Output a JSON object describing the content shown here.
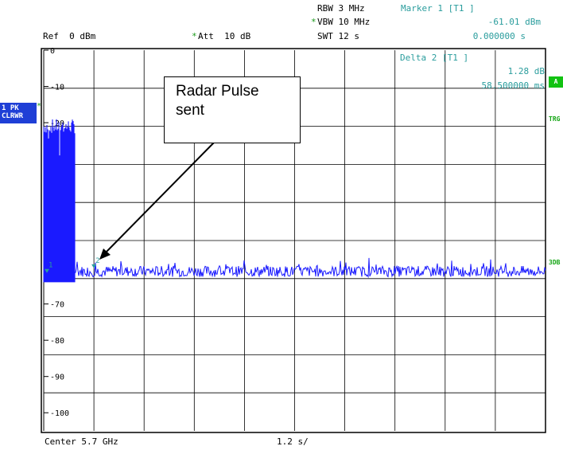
{
  "header": {
    "rbw": "RBW 3 MHz",
    "vbw": "VBW 10 MHz",
    "swt": "SWT 12 s",
    "ref": "Ref  0 dBm",
    "att": "Att  10 dB",
    "star": "*"
  },
  "marker1": {
    "title": "Marker 1 [T1 ]",
    "value": "-61.01 dBm",
    "time": "0.000000 s"
  },
  "delta2": {
    "title": "Delta 2 [T1 ]",
    "value": "1.28 dB",
    "time": "58.500000 ms"
  },
  "left_box": {
    "line1": "1 PK",
    "line2": "CLRWR"
  },
  "right_labels": {
    "a": "A",
    "trg": "TRG",
    "db3": "3DB"
  },
  "footer": {
    "center": "Center 5.7 GHz",
    "span": "1.2 s/"
  },
  "annotation": {
    "text_line1": "Radar Pulse",
    "text_line2": "sent"
  },
  "chart_data": {
    "type": "line",
    "xlabel": "",
    "ylabel": "",
    "y_tick_labels": [
      "0",
      "-10",
      "-20",
      "-70",
      "-80",
      "-90",
      "-100"
    ],
    "y_ticks": [
      0,
      -10,
      -20,
      -70,
      -80,
      -90,
      -100
    ],
    "ylim": [
      -105,
      0
    ],
    "xlim": [
      0,
      12
    ],
    "x_unit": "s",
    "grid": true,
    "series": [
      {
        "color": "#1a1aff",
        "burst": {
          "x_range": [
            0,
            0.75
          ],
          "peak_min": -23,
          "peak_max": -19,
          "floor": -64
        },
        "noise_floor": {
          "x_range": [
            0.75,
            12
          ],
          "mean": -61,
          "jitter": 1.5
        }
      }
    ],
    "markers": [
      {
        "label": "1",
        "x": 0.0,
        "y": -61.01
      },
      {
        "label": "2",
        "x": 0.0585,
        "y": -59.73
      }
    ]
  }
}
